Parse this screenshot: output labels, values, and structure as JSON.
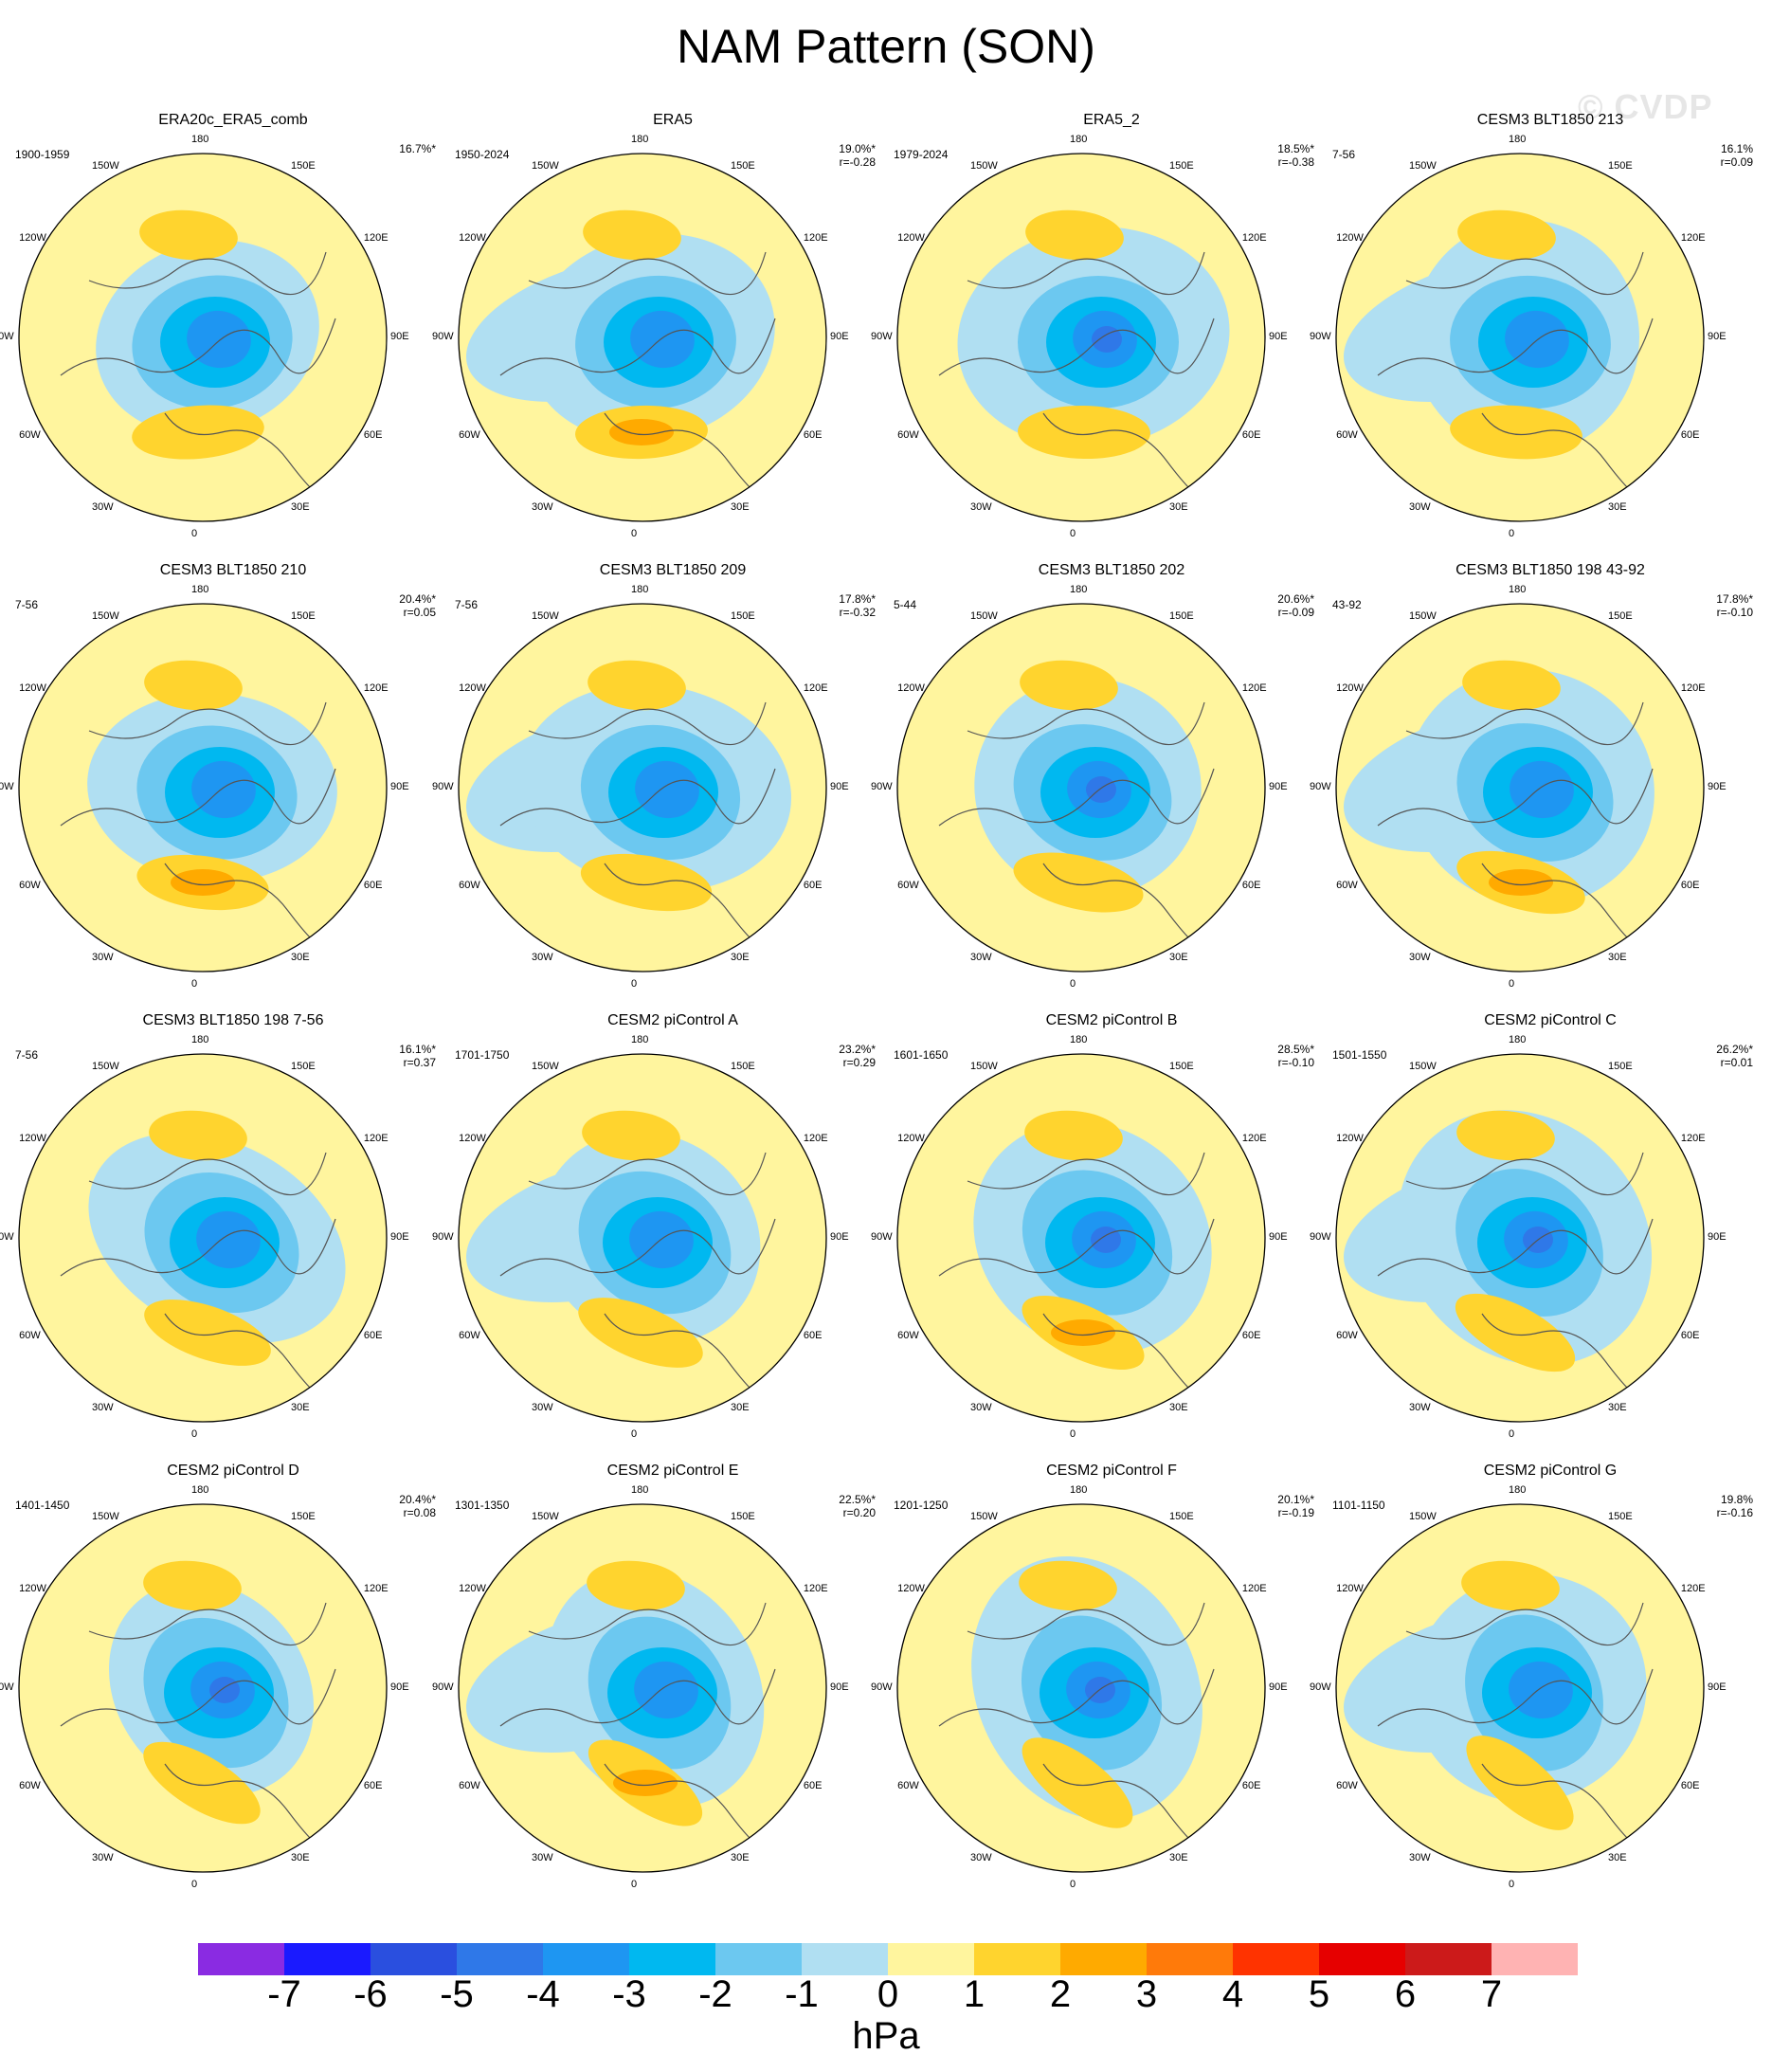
{
  "title": "NAM Pattern (SON)",
  "watermark": "© CVDP",
  "longitude_labels": [
    "180",
    "150E",
    "120E",
    "90E",
    "60E",
    "30E",
    "0",
    "30W",
    "60W",
    "90W",
    "120W",
    "150W"
  ],
  "panels": [
    {
      "title": "ERA20c_ERA5_comb",
      "period": "1900-1959",
      "pct": "16.7%*",
      "r": ""
    },
    {
      "title": "ERA5",
      "period": "1950-2024",
      "pct": "19.0%*",
      "r": "r=-0.28"
    },
    {
      "title": "ERA5_2",
      "period": "1979-2024",
      "pct": "18.5%*",
      "r": "r=-0.38"
    },
    {
      "title": "CESM3 BLT1850 213",
      "period": "7-56",
      "pct": "16.1%",
      "r": "r=0.09"
    },
    {
      "title": "CESM3 BLT1850 210",
      "period": "7-56",
      "pct": "20.4%*",
      "r": "r=0.05"
    },
    {
      "title": "CESM3 BLT1850 209",
      "period": "7-56",
      "pct": "17.8%*",
      "r": "r=-0.32"
    },
    {
      "title": "CESM3 BLT1850 202",
      "period": "5-44",
      "pct": "20.6%*",
      "r": "r=-0.09"
    },
    {
      "title": "CESM3 BLT1850 198 43-92",
      "period": "43-92",
      "pct": "17.8%*",
      "r": "r=-0.10"
    },
    {
      "title": "CESM3 BLT1850 198 7-56",
      "period": "7-56",
      "pct": "16.1%*",
      "r": "r=0.37"
    },
    {
      "title": "CESM2 piControl A",
      "period": "1701-1750",
      "pct": "23.2%*",
      "r": "r=0.29"
    },
    {
      "title": "CESM2 piControl B",
      "period": "1601-1650",
      "pct": "28.5%*",
      "r": "r=-0.10"
    },
    {
      "title": "CESM2 piControl C",
      "period": "1501-1550",
      "pct": "26.2%*",
      "r": "r=0.01"
    },
    {
      "title": "CESM2 piControl D",
      "period": "1401-1450",
      "pct": "20.4%*",
      "r": "r=0.08"
    },
    {
      "title": "CESM2 piControl E",
      "period": "1301-1350",
      "pct": "22.5%*",
      "r": "r=0.20"
    },
    {
      "title": "CESM2 piControl F",
      "period": "1201-1250",
      "pct": "20.1%*",
      "r": "r=-0.19"
    },
    {
      "title": "CESM2 piControl G",
      "period": "1101-1150",
      "pct": "19.8%",
      "r": "r=-0.16"
    }
  ],
  "colorbar": {
    "units": "hPa",
    "tick_labels": [
      "-7",
      "-6",
      "-5",
      "-4",
      "-3",
      "-2",
      "-1",
      "0",
      "1",
      "2",
      "3",
      "4",
      "5",
      "6",
      "7"
    ],
    "colors": [
      "#8a2be2",
      "#1a1aff",
      "#2a4fdf",
      "#2f78e8",
      "#1e96f2",
      "#00b8f0",
      "#6cc8f0",
      "#b0dff2",
      "#fff59e",
      "#ffd42e",
      "#ffaa00",
      "#ff7a0a",
      "#ff3300",
      "#e60000",
      "#cc1a1a",
      "#ffb3b3"
    ]
  }
}
